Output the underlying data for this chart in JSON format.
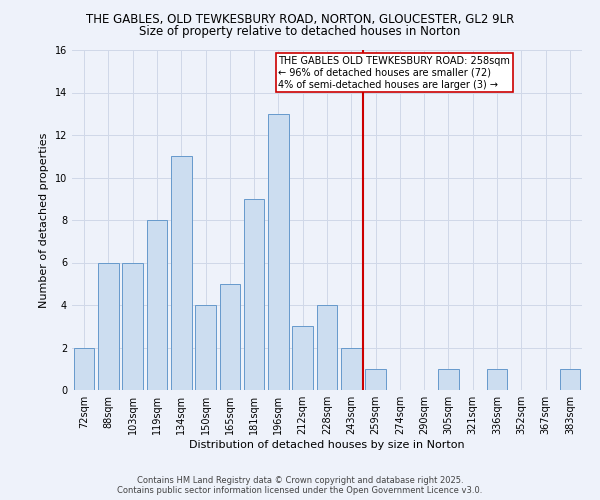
{
  "title1": "THE GABLES, OLD TEWKESBURY ROAD, NORTON, GLOUCESTER, GL2 9LR",
  "title2": "Size of property relative to detached houses in Norton",
  "xlabel": "Distribution of detached houses by size in Norton",
  "ylabel": "Number of detached properties",
  "categories": [
    "72sqm",
    "88sqm",
    "103sqm",
    "119sqm",
    "134sqm",
    "150sqm",
    "165sqm",
    "181sqm",
    "196sqm",
    "212sqm",
    "228sqm",
    "243sqm",
    "259sqm",
    "274sqm",
    "290sqm",
    "305sqm",
    "321sqm",
    "336sqm",
    "352sqm",
    "367sqm",
    "383sqm"
  ],
  "values": [
    2,
    6,
    6,
    8,
    11,
    4,
    5,
    9,
    13,
    3,
    4,
    2,
    1,
    0,
    0,
    1,
    0,
    1,
    0,
    0,
    1
  ],
  "bar_color": "#ccddf0",
  "bar_edge_color": "#6699cc",
  "red_line_index": 12,
  "annotation_title": "THE GABLES OLD TEWKESBURY ROAD: 258sqm",
  "annotation_line1": "← 96% of detached houses are smaller (72)",
  "annotation_line2": "4% of semi-detached houses are larger (3) →",
  "annotation_box_color": "#ffffff",
  "annotation_box_edge": "#cc0000",
  "vline_color": "#cc0000",
  "ylim": [
    0,
    16
  ],
  "yticks": [
    0,
    2,
    4,
    6,
    8,
    10,
    12,
    14,
    16
  ],
  "grid_color": "#d0d8e8",
  "background_color": "#eef2fa",
  "footer1": "Contains HM Land Registry data © Crown copyright and database right 2025.",
  "footer2": "Contains public sector information licensed under the Open Government Licence v3.0.",
  "title1_fontsize": 8.5,
  "title2_fontsize": 8.5,
  "axis_label_fontsize": 8,
  "tick_fontsize": 7,
  "annotation_fontsize": 7,
  "footer_fontsize": 6
}
